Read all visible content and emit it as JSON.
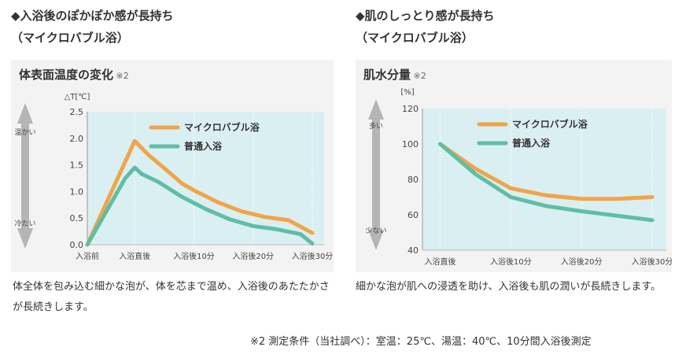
{
  "left": {
    "heading": "◆入浴後のぽかぽか感が長持ち",
    "subheading": "（マイクロバブル浴）",
    "description": "体全体を包み込む細かな泡が、体を芯まで温め、入浴後のあたたかさが長続きします。",
    "arrow_top": "温かい",
    "arrow_bottom": "冷たい"
  },
  "right": {
    "heading": "◆肌のしっとり感が長持ち",
    "subheading": "（マイクロバブル浴）",
    "description": "細かな泡が肌への浸透を助け、入浴後も肌の潤いが長続きします。",
    "arrow_top": "多い",
    "arrow_bottom": "少ない"
  },
  "footnote": "※2 測定条件（当社調べ）：室温：25℃、湯温：40℃、10分間入浴後測定",
  "colors": {
    "microbubble": "#f0a54a",
    "normal": "#5fbea4",
    "plot_bg": "#daeff2",
    "arrow": "#b5b5b5"
  },
  "chart_data": [
    {
      "type": "line",
      "title": "体表面温度の変化",
      "note": "※2",
      "ylabel": "△T[℃]",
      "ylim": [
        0,
        2.5
      ],
      "yticks": [
        "0.0",
        "0.5",
        "1.0",
        "1.5",
        "2.0",
        "2.5"
      ],
      "x_range": [
        0,
        10
      ],
      "x_tick_labels": [
        {
          "x": 0,
          "label": "入浴前"
        },
        {
          "x": 2,
          "label": "入浴直後"
        },
        {
          "x": 4.5,
          "label": "入浴後10分"
        },
        {
          "x": 7,
          "label": "入浴後20分"
        },
        {
          "x": 9.5,
          "label": "入浴後30分"
        }
      ],
      "gridlines_x": [
        0,
        2,
        4.5,
        7,
        9.5
      ],
      "series": [
        {
          "name": "マイクロバブル浴",
          "points": [
            [
              0,
              0.0
            ],
            [
              2,
              1.95
            ],
            [
              2.6,
              1.68
            ],
            [
              3.3,
              1.42
            ],
            [
              4.0,
              1.15
            ],
            [
              4.6,
              1.0
            ],
            [
              5.5,
              0.8
            ],
            [
              6.5,
              0.63
            ],
            [
              7.5,
              0.52
            ],
            [
              8.5,
              0.46
            ],
            [
              9.5,
              0.22
            ]
          ]
        },
        {
          "name": "普通入浴",
          "points": [
            [
              0,
              0.0
            ],
            [
              1.6,
              1.25
            ],
            [
              2.0,
              1.45
            ],
            [
              2.3,
              1.33
            ],
            [
              3.0,
              1.18
            ],
            [
              4.0,
              0.9
            ],
            [
              5.0,
              0.67
            ],
            [
              6.0,
              0.48
            ],
            [
              7.0,
              0.35
            ],
            [
              8.0,
              0.29
            ],
            [
              9.0,
              0.2
            ],
            [
              9.5,
              0.02
            ]
          ]
        }
      ]
    },
    {
      "type": "line",
      "title": "肌水分量",
      "note": "※2",
      "ylabel": "[%]",
      "ylim": [
        40,
        120
      ],
      "yticks": [
        "40",
        "60",
        "80",
        "100",
        "120"
      ],
      "x_range": [
        -0.5,
        6.4
      ],
      "x_tick_labels": [
        {
          "x": 0,
          "label": "入浴直後"
        },
        {
          "x": 2,
          "label": "入浴後10分"
        },
        {
          "x": 4,
          "label": "入浴後20分"
        },
        {
          "x": 6,
          "label": "入浴後30分"
        }
      ],
      "gridlines_x": [
        0,
        2,
        4,
        6
      ],
      "series": [
        {
          "name": "マイクロバブル浴",
          "points": [
            [
              0,
              100
            ],
            [
              1,
              86
            ],
            [
              2,
              75
            ],
            [
              3,
              71
            ],
            [
              4,
              69
            ],
            [
              5,
              69
            ],
            [
              6,
              70
            ]
          ]
        },
        {
          "name": "普通入浴",
          "points": [
            [
              0,
              100
            ],
            [
              1,
              83
            ],
            [
              2,
              70
            ],
            [
              3,
              65
            ],
            [
              4,
              62
            ],
            [
              5,
              59.5
            ],
            [
              6,
              57
            ]
          ]
        }
      ]
    }
  ]
}
